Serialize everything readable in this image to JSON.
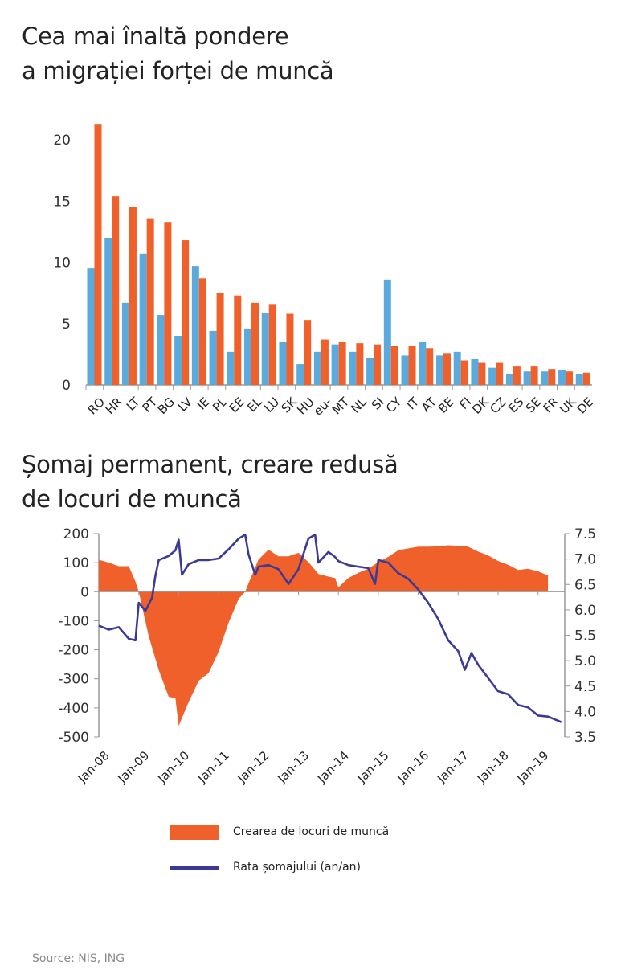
{
  "colors": {
    "orange": "#f0602a",
    "blue_bar": "#5aaade",
    "line": "#3b3a97",
    "axis": "#999999"
  },
  "source": "Source: NIS, ING",
  "chart_data": [
    {
      "type": "bar",
      "title": "Cea mai înaltă pondere a migrației forței de muncă",
      "title_lines": [
        "Cea mai înaltă pondere",
        "a migrației forței de muncă"
      ],
      "categories": [
        "RO",
        "HR",
        "LT",
        "PT",
        "BG",
        "LV",
        "IE",
        "PL",
        "EE",
        "EL",
        "LU",
        "SK",
        "HU",
        "eu-",
        "MT",
        "NL",
        "SI",
        "CY",
        "IT",
        "AT",
        "BE",
        "FI",
        "DK",
        "CZ",
        "ES",
        "SE",
        "FR",
        "UK",
        "DE"
      ],
      "series": [
        {
          "color": "#5aaade",
          "values": [
            9.5,
            12.0,
            6.7,
            10.7,
            5.7,
            4.0,
            9.7,
            4.4,
            2.7,
            4.6,
            5.9,
            3.5,
            1.7,
            2.7,
            3.3,
            2.7,
            2.2,
            8.6,
            2.4,
            3.5,
            2.4,
            2.7,
            2.1,
            1.4,
            0.9,
            1.1,
            1.1,
            1.2,
            0.9
          ]
        },
        {
          "color": "#f0602a",
          "values": [
            21.3,
            15.4,
            14.5,
            13.6,
            13.3,
            11.8,
            8.7,
            7.5,
            7.3,
            6.7,
            6.6,
            5.8,
            5.3,
            3.7,
            3.5,
            3.4,
            3.3,
            3.2,
            3.2,
            3.0,
            2.6,
            2.0,
            1.8,
            1.8,
            1.5,
            1.5,
            1.3,
            1.1,
            1.0
          ]
        }
      ],
      "yticks": [
        "0",
        "5",
        "10",
        "15",
        "20"
      ],
      "ylim": [
        0,
        22
      ],
      "xlabel": "",
      "ylabel": "",
      "grid": false
    },
    {
      "type": "area+line",
      "title": "Șomaj permanent, creare redusă de locuri de muncă",
      "title_lines": [
        "Șomaj permanent, creare redusă",
        "de locuri de muncă"
      ],
      "xticks": [
        "Jan-08",
        "Jan-09",
        "Jan-10",
        "Jan-11",
        "Jan-12",
        "Jan-13",
        "Jan-14",
        "Jan-15",
        "Jan-16",
        "Jan-17",
        "Jan-18",
        "Jan-19"
      ],
      "left_yticks": [
        "200",
        "100",
        "0",
        "-100",
        "-200",
        "-300",
        "-400",
        "-500"
      ],
      "right_yticks": [
        "7.5",
        "7.0",
        "6.5",
        "6.0",
        "5.5",
        "5.0",
        "4.5",
        "4.0",
        "3.5"
      ],
      "left_ylim": [
        -500,
        200
      ],
      "right_ylim": [
        3.5,
        7.5
      ],
      "legend_position": "bottom",
      "series": [
        {
          "name": "Crearea de locuri de muncă",
          "type": "area",
          "axis": "left",
          "color": "#f0602a",
          "x": [
            "2008-01",
            "2008-04",
            "2008-07",
            "2008-10",
            "2008-12",
            "2009-01",
            "2009-04",
            "2009-07",
            "2009-10",
            "2009-12",
            "2010-01",
            "2010-04",
            "2010-07",
            "2010-10",
            "2011-01",
            "2011-04",
            "2011-07",
            "2011-09",
            "2011-10",
            "2012-01",
            "2012-04",
            "2012-07",
            "2012-10",
            "2013-01",
            "2013-04",
            "2013-07",
            "2013-10",
            "2013-12",
            "2014-01",
            "2014-04",
            "2014-07",
            "2014-10",
            "2015-01",
            "2015-04",
            "2015-07",
            "2015-10",
            "2016-01",
            "2016-04",
            "2016-07",
            "2016-10",
            "2017-01",
            "2017-04",
            "2017-07",
            "2017-10",
            "2018-01",
            "2018-04",
            "2018-07",
            "2018-10",
            "2019-01",
            "2019-04"
          ],
          "y": [
            110,
            100,
            88,
            88,
            35,
            0,
            -153,
            -270,
            -362,
            -366,
            -462,
            -380,
            -307,
            -280,
            -207,
            -107,
            -25,
            0,
            29,
            111,
            145,
            122,
            122,
            134,
            102,
            61,
            52,
            47,
            15,
            47,
            65,
            79,
            102,
            120,
            143,
            149,
            155,
            155,
            156,
            160,
            158,
            155,
            138,
            125,
            106,
            93,
            75,
            79,
            70,
            56
          ]
        },
        {
          "name": "Rata șomajului (an/an)",
          "type": "line",
          "axis": "right",
          "color": "#3b3a97",
          "x": [
            "2008-01",
            "2008-04",
            "2008-07",
            "2008-10",
            "2008-12",
            "2009-01",
            "2009-03",
            "2009-05",
            "2009-06",
            "2009-07",
            "2009-10",
            "2009-12",
            "2010-01",
            "2010-02",
            "2010-04",
            "2010-07",
            "2010-10",
            "2011-01",
            "2011-04",
            "2011-07",
            "2011-09",
            "2011-10",
            "2011-12",
            "2012-01",
            "2012-04",
            "2012-07",
            "2012-10",
            "2013-01",
            "2013-04",
            "2013-06",
            "2013-07",
            "2013-10",
            "2013-12",
            "2014-01",
            "2014-04",
            "2014-07",
            "2014-10",
            "2014-12",
            "2015-01",
            "2015-04",
            "2015-07",
            "2015-10",
            "2016-01",
            "2016-04",
            "2016-07",
            "2016-10",
            "2017-01",
            "2017-03",
            "2017-05",
            "2017-07",
            "2017-10",
            "2018-01",
            "2018-04",
            "2018-07",
            "2018-10",
            "2019-01",
            "2019-04",
            "2019-07",
            "2019-08"
          ],
          "y": [
            5.69,
            5.61,
            5.66,
            5.43,
            5.4,
            6.14,
            5.98,
            6.24,
            6.67,
            6.98,
            7.06,
            7.17,
            7.38,
            6.69,
            6.9,
            6.98,
            6.98,
            7.01,
            7.19,
            7.4,
            7.48,
            7.09,
            6.69,
            6.85,
            6.88,
            6.8,
            6.51,
            6.8,
            7.4,
            7.48,
            6.93,
            7.14,
            7.04,
            6.96,
            6.88,
            6.85,
            6.82,
            6.51,
            6.98,
            6.93,
            6.72,
            6.61,
            6.4,
            6.14,
            5.82,
            5.4,
            5.19,
            4.82,
            5.15,
            4.92,
            4.66,
            4.4,
            4.34,
            4.13,
            4.08,
            3.92,
            3.9,
            3.82,
            3.79
          ]
        }
      ],
      "grid": false
    }
  ]
}
